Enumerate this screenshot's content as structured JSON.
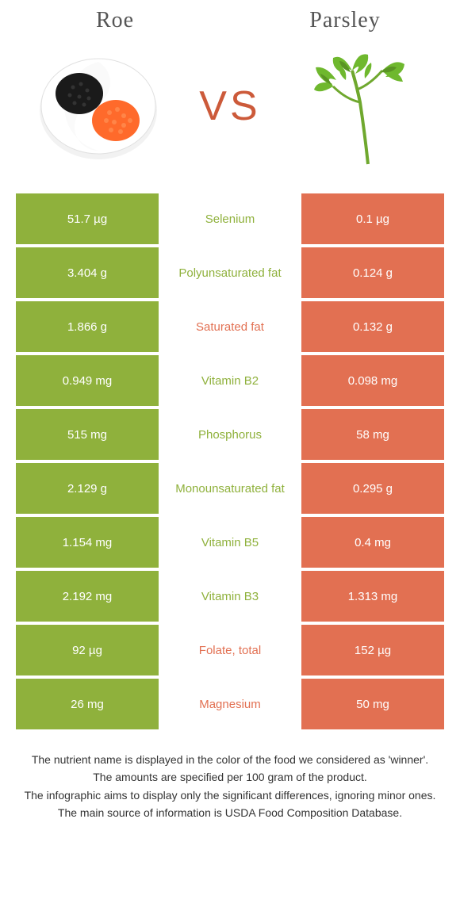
{
  "titles": {
    "left": "Roe",
    "right": "Parsley"
  },
  "vs": "VS",
  "colors": {
    "left_bg": "#8fb13c",
    "right_bg": "#e27052",
    "left_text": "#8fb13c",
    "right_text": "#e27052",
    "title_color": "#555555",
    "footer_color": "#333333"
  },
  "rows": [
    {
      "nutrient": "Selenium",
      "left": "51.7 µg",
      "right": "0.1 µg",
      "winner": "left"
    },
    {
      "nutrient": "Polyunsaturated fat",
      "left": "3.404 g",
      "right": "0.124 g",
      "winner": "left"
    },
    {
      "nutrient": "Saturated fat",
      "left": "1.866 g",
      "right": "0.132 g",
      "winner": "right"
    },
    {
      "nutrient": "Vitamin B2",
      "left": "0.949 mg",
      "right": "0.098 mg",
      "winner": "left"
    },
    {
      "nutrient": "Phosphorus",
      "left": "515 mg",
      "right": "58 mg",
      "winner": "left"
    },
    {
      "nutrient": "Monounsaturated fat",
      "left": "2.129 g",
      "right": "0.295 g",
      "winner": "left"
    },
    {
      "nutrient": "Vitamin B5",
      "left": "1.154 mg",
      "right": "0.4 mg",
      "winner": "left"
    },
    {
      "nutrient": "Vitamin B3",
      "left": "2.192 mg",
      "right": "1.313 mg",
      "winner": "left"
    },
    {
      "nutrient": "Folate, total",
      "left": "92 µg",
      "right": "152 µg",
      "winner": "right"
    },
    {
      "nutrient": "Magnesium",
      "left": "26 mg",
      "right": "50 mg",
      "winner": "right"
    }
  ],
  "footer": [
    "The nutrient name is displayed in the color of the food we considered as 'winner'.",
    "The amounts are specified per 100 gram of the product.",
    "The infographic aims to display only the significant differences, ignoring minor ones.",
    "The main source of information is USDA Food Composition Database."
  ]
}
